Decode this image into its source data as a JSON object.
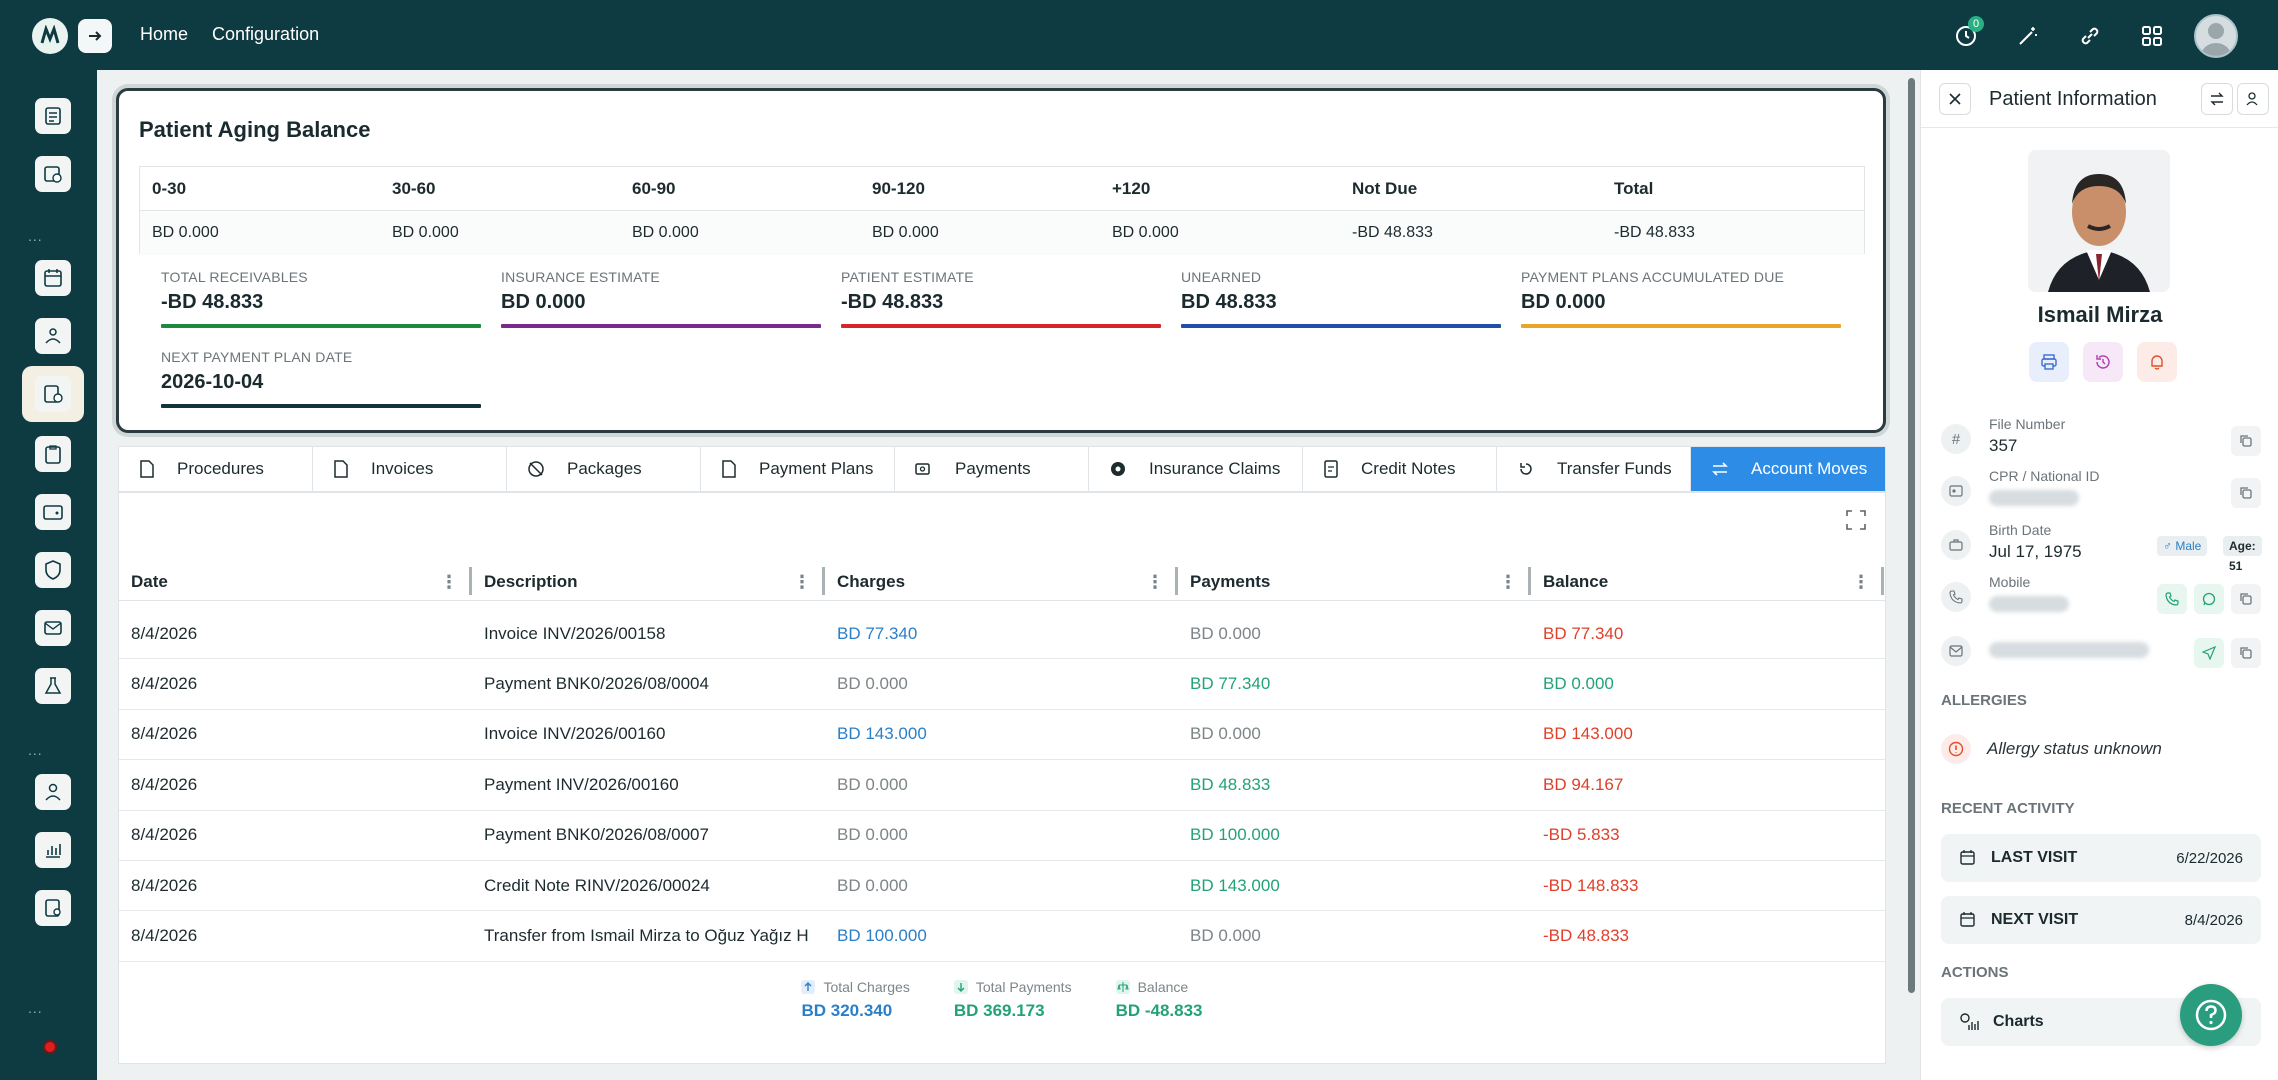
{
  "topbar": {
    "nav": [
      "Home",
      "Configuration"
    ],
    "notification_count": "0",
    "icons": [
      "clock-icon",
      "magic-wand-icon",
      "link-icon",
      "apps-grid-icon",
      "user-avatar"
    ]
  },
  "sidebar": {
    "dots": "...",
    "items": [
      "dashboard-icon",
      "chart-doc-icon",
      "calendar-icon",
      "patients-icon",
      "billing-icon",
      "clipboard-icon",
      "wallet-icon",
      "shield-icon",
      "mail-icon",
      "lab-flask-icon",
      "doctor-icon",
      "report-icon",
      "settings-doc-icon"
    ]
  },
  "aging": {
    "title": "Patient Aging Balance",
    "headers": [
      "0-30",
      "30-60",
      "60-90",
      "90-120",
      "+120",
      "Not Due",
      "Total"
    ],
    "values": [
      "BD 0.000",
      "BD 0.000",
      "BD 0.000",
      "BD 0.000",
      "BD 0.000",
      "-BD 48.833",
      "-BD 48.833"
    ],
    "metrics": [
      {
        "label": "TOTAL RECEIVABLES",
        "value": "-BD 48.833",
        "color": "#1e8a3c"
      },
      {
        "label": "INSURANCE ESTIMATE",
        "value": "BD 0.000",
        "color": "#7a2a8c"
      },
      {
        "label": "PATIENT ESTIMATE",
        "value": "-BD 48.833",
        "color": "#d6262b"
      },
      {
        "label": "UNEARNED",
        "value": "BD 48.833",
        "color": "#1f4fa8"
      },
      {
        "label": "PAYMENT PLANS ACCUMULATED DUE",
        "value": "BD 0.000",
        "color": "#e9a526"
      },
      {
        "label": "NEXT PAYMENT PLAN DATE",
        "value": "2026-10-04",
        "color": "#14343c"
      }
    ]
  },
  "tabs": [
    "Procedures",
    "Invoices",
    "Packages",
    "Payment Plans",
    "Payments",
    "Insurance Claims",
    "Credit Notes",
    "Transfer Funds",
    "Account Moves"
  ],
  "active_tab": "Account Moves",
  "table": {
    "columns": [
      "Date",
      "Description",
      "Charges",
      "Payments",
      "Balance"
    ],
    "rows": [
      {
        "date": "8/4/2026",
        "desc": "Invoice INV/2026/00158",
        "charges": "BD 77.340",
        "payments": "BD 0.000",
        "balance": "BD 77.340"
      },
      {
        "date": "8/4/2026",
        "desc": "Payment BNK0/2026/08/0004",
        "charges": "BD 0.000",
        "payments": "BD 77.340",
        "balance": "BD 0.000"
      },
      {
        "date": "8/4/2026",
        "desc": "Invoice INV/2026/00160",
        "charges": "BD 143.000",
        "payments": "BD 0.000",
        "balance": "BD 143.000"
      },
      {
        "date": "8/4/2026",
        "desc": "Payment INV/2026/00160",
        "charges": "BD 0.000",
        "payments": "BD 48.833",
        "balance": "BD 94.167"
      },
      {
        "date": "8/4/2026",
        "desc": "Payment BNK0/2026/08/0007",
        "charges": "BD 0.000",
        "payments": "BD 100.000",
        "balance": "-BD 5.833"
      },
      {
        "date": "8/4/2026",
        "desc": "Credit Note RINV/2026/00024",
        "charges": "BD 0.000",
        "payments": "BD 143.000",
        "balance": "-BD 148.833"
      },
      {
        "date": "8/4/2026",
        "desc": "Transfer from Ismail Mirza to Oğuz Yağız H",
        "charges": "BD 100.000",
        "payments": "BD 0.000",
        "balance": "-BD 48.833"
      }
    ],
    "totals": {
      "charges_label": "Total Charges",
      "charges_value": "BD 320.340",
      "payments_label": "Total Payments",
      "payments_value": "BD 369.173",
      "balance_label": "Balance",
      "balance_value": "BD -48.833"
    }
  },
  "patient": {
    "panel_title": "Patient Information",
    "name": "Ismail Mirza",
    "file_number_label": "File Number",
    "file_number": "357",
    "cpr_label": "CPR / National ID",
    "birth_label": "Birth Date",
    "birth_date": "Jul 17, 1975",
    "gender": "♂ Male",
    "age": "Age: 51",
    "mobile_label": "Mobile",
    "allergies_label": "ALLERGIES",
    "allergy_status": "Allergy status unknown",
    "recent_label": "RECENT ACTIVITY",
    "last_visit_label": "LAST VISIT",
    "last_visit": "6/22/2026",
    "next_visit_label": "NEXT VISIT",
    "next_visit": "8/4/2026",
    "actions_label": "ACTIONS",
    "charts_label": "Charts"
  }
}
